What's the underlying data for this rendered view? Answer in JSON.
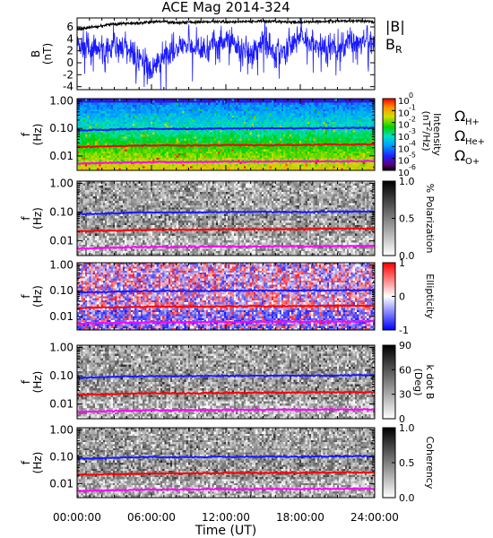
{
  "chart_data": [
    {
      "type": "line",
      "title": "ACE Mag 2014-324",
      "ylabel_lines": [
        "B",
        "(nT)"
      ],
      "ylim": [
        -4.5,
        7.5
      ],
      "yticks": [
        "6",
        "4",
        "2",
        "0",
        "-2",
        "-4"
      ],
      "ytick_values": [
        6,
        4,
        2,
        0,
        -2,
        -4
      ],
      "xlim_hours": [
        0,
        24
      ],
      "grid": false,
      "series": [
        {
          "name": "|B|",
          "color": "#000000",
          "x_hours": [
            0,
            1,
            2,
            3,
            4,
            5,
            6,
            7,
            8,
            9,
            10,
            11,
            12,
            13,
            14,
            15,
            16,
            17,
            18,
            19,
            20,
            21,
            22,
            23,
            24
          ],
          "values": [
            5.6,
            5.9,
            6.2,
            6.5,
            6.6,
            6.6,
            6.8,
            6.9,
            6.7,
            6.8,
            6.8,
            6.9,
            6.8,
            6.9,
            6.9,
            7.0,
            6.9,
            6.8,
            6.8,
            6.9,
            6.9,
            7.0,
            7.0,
            7.0,
            6.8
          ]
        },
        {
          "name": "B_R",
          "color": "#1a1aff",
          "x_hours": [
            0,
            1,
            2,
            3,
            4,
            5,
            6,
            7,
            8,
            9,
            10,
            11,
            12,
            13,
            14,
            15,
            16,
            17,
            18,
            19,
            20,
            21,
            22,
            23,
            24
          ],
          "values": [
            3.0,
            2.5,
            1.8,
            2.6,
            2.8,
            0.5,
            -1.5,
            1.0,
            2.5,
            3.0,
            2.0,
            3.5,
            3.5,
            2.8,
            1.5,
            4.0,
            1.8,
            2.5,
            4.5,
            3.0,
            2.5,
            2.0,
            4.0,
            3.5,
            3.0
          ]
        }
      ],
      "legend": {
        "placement": "right",
        "labels": [
          "|B|",
          "B",
          "R"
        ]
      }
    },
    {
      "type": "heatmap",
      "ylabel_lines": [
        "f",
        "(Hz)"
      ],
      "yscale": "log",
      "ylim": [
        0.003,
        1.2
      ],
      "yticks": [
        "1.00",
        "0.10",
        "0.01"
      ],
      "ytick_values": [
        1,
        0.1,
        0.01
      ],
      "colorbar": {
        "label": "Intensity (nT²/Hz)",
        "scale": "log",
        "range": [
          1e-06,
          1
        ],
        "palette": "rainbow",
        "ticks": [
          {
            "value": 0,
            "base": "10",
            "exp": "0"
          },
          {
            "value": -1,
            "base": "10",
            "exp": "-1"
          },
          {
            "value": -2,
            "base": "10",
            "exp": "-2"
          },
          {
            "value": -3,
            "base": "10",
            "exp": "-3"
          },
          {
            "value": -4,
            "base": "10",
            "exp": "-4"
          },
          {
            "value": -5,
            "base": "10",
            "exp": "-5"
          },
          {
            "value": -6,
            "base": "10",
            "exp": "-6"
          }
        ],
        "label_parts": {
          "main": "Intensity",
          "unit_open": "(nT",
          "unit_exp": "2",
          "unit_close": "/Hz)"
        }
      },
      "gyrofrequency_legend": [
        {
          "symbol": "Ω",
          "sub": "H+",
          "color": "#1a1aff"
        },
        {
          "symbol": "Ω",
          "sub": "He+",
          "color": "#ff0000"
        },
        {
          "symbol": "Ω",
          "sub": "O+",
          "color": "#ff00ff"
        }
      ]
    },
    {
      "type": "heatmap",
      "ylabel_lines": [
        "f",
        "(Hz)"
      ],
      "yscale": "log",
      "ylim": [
        0.003,
        1.2
      ],
      "yticks": [
        "1.00",
        "0.10",
        "0.01"
      ],
      "ytick_values": [
        1,
        0.1,
        0.01
      ],
      "colorbar": {
        "label": "% Polarization",
        "scale": "linear",
        "range": [
          0,
          1
        ],
        "palette": "gray_r",
        "ticks": [
          {
            "value": 1.0,
            "text": "1.0"
          },
          {
            "value": 0.5,
            "text": "0.5"
          },
          {
            "value": 0.0,
            "text": "0.0"
          }
        ]
      }
    },
    {
      "type": "heatmap",
      "ylabel_lines": [
        "f",
        "(Hz)"
      ],
      "yscale": "log",
      "ylim": [
        0.003,
        1.2
      ],
      "yticks": [
        "1.00",
        "0.10",
        "0.01"
      ],
      "ytick_values": [
        1,
        0.1,
        0.01
      ],
      "colorbar": {
        "label": "Ellipticity",
        "scale": "linear",
        "range": [
          -1,
          1
        ],
        "palette": "bwr",
        "ticks": [
          {
            "value": 1,
            "text": "1"
          },
          {
            "value": 0,
            "text": "0"
          },
          {
            "value": -1,
            "text": "-1"
          }
        ]
      }
    },
    {
      "type": "heatmap",
      "ylabel_lines": [
        "f",
        "(Hz)"
      ],
      "yscale": "log",
      "ylim": [
        0.003,
        1.2
      ],
      "yticks": [
        "1.00",
        "0.10",
        "0.01"
      ],
      "ytick_values": [
        1,
        0.1,
        0.01
      ],
      "colorbar": {
        "label_lines": [
          "k dot B",
          "(Deg)"
        ],
        "scale": "linear",
        "range": [
          0,
          90
        ],
        "palette": "gray_r",
        "ticks": [
          {
            "value": 90,
            "text": "90"
          },
          {
            "value": 60,
            "text": "60"
          },
          {
            "value": 30,
            "text": "30"
          },
          {
            "value": 0,
            "text": "0"
          }
        ]
      }
    },
    {
      "type": "heatmap",
      "ylabel_lines": [
        "f",
        "(Hz)"
      ],
      "yscale": "log",
      "ylim": [
        0.003,
        1.2
      ],
      "yticks": [
        "1.00",
        "0.10",
        "0.01"
      ],
      "ytick_values": [
        1,
        0.1,
        0.01
      ],
      "colorbar": {
        "label": "Coherency",
        "scale": "linear",
        "range": [
          0,
          1
        ],
        "palette": "gray_r",
        "ticks": [
          {
            "value": 1.0,
            "text": "1.0"
          },
          {
            "value": 0.5,
            "text": "0.5"
          },
          {
            "value": 0.0,
            "text": "0.0"
          }
        ]
      }
    }
  ],
  "gyrofrequencies": {
    "x_hours": [
      0,
      2,
      4,
      6,
      8,
      10,
      12,
      14,
      16,
      18,
      20,
      22,
      24
    ],
    "H+": [
      0.085,
      0.088,
      0.094,
      0.097,
      0.096,
      0.098,
      0.099,
      0.1,
      0.101,
      0.101,
      0.102,
      0.104,
      0.104
    ],
    "He+": [
      0.021,
      0.022,
      0.023,
      0.024,
      0.024,
      0.024,
      0.025,
      0.025,
      0.025,
      0.025,
      0.026,
      0.026,
      0.026
    ],
    "O+": [
      0.0053,
      0.0055,
      0.0058,
      0.006,
      0.006,
      0.0061,
      0.0062,
      0.0062,
      0.0063,
      0.0063,
      0.0064,
      0.0064,
      0.0065
    ]
  },
  "time_axis": {
    "xlabel": "Time (UT)",
    "ticks": [
      "00:00:00",
      "06:00:00",
      "12:00:00",
      "18:00:00",
      "24:00:00"
    ],
    "tick_hours": [
      0,
      6,
      12,
      18,
      24
    ]
  }
}
